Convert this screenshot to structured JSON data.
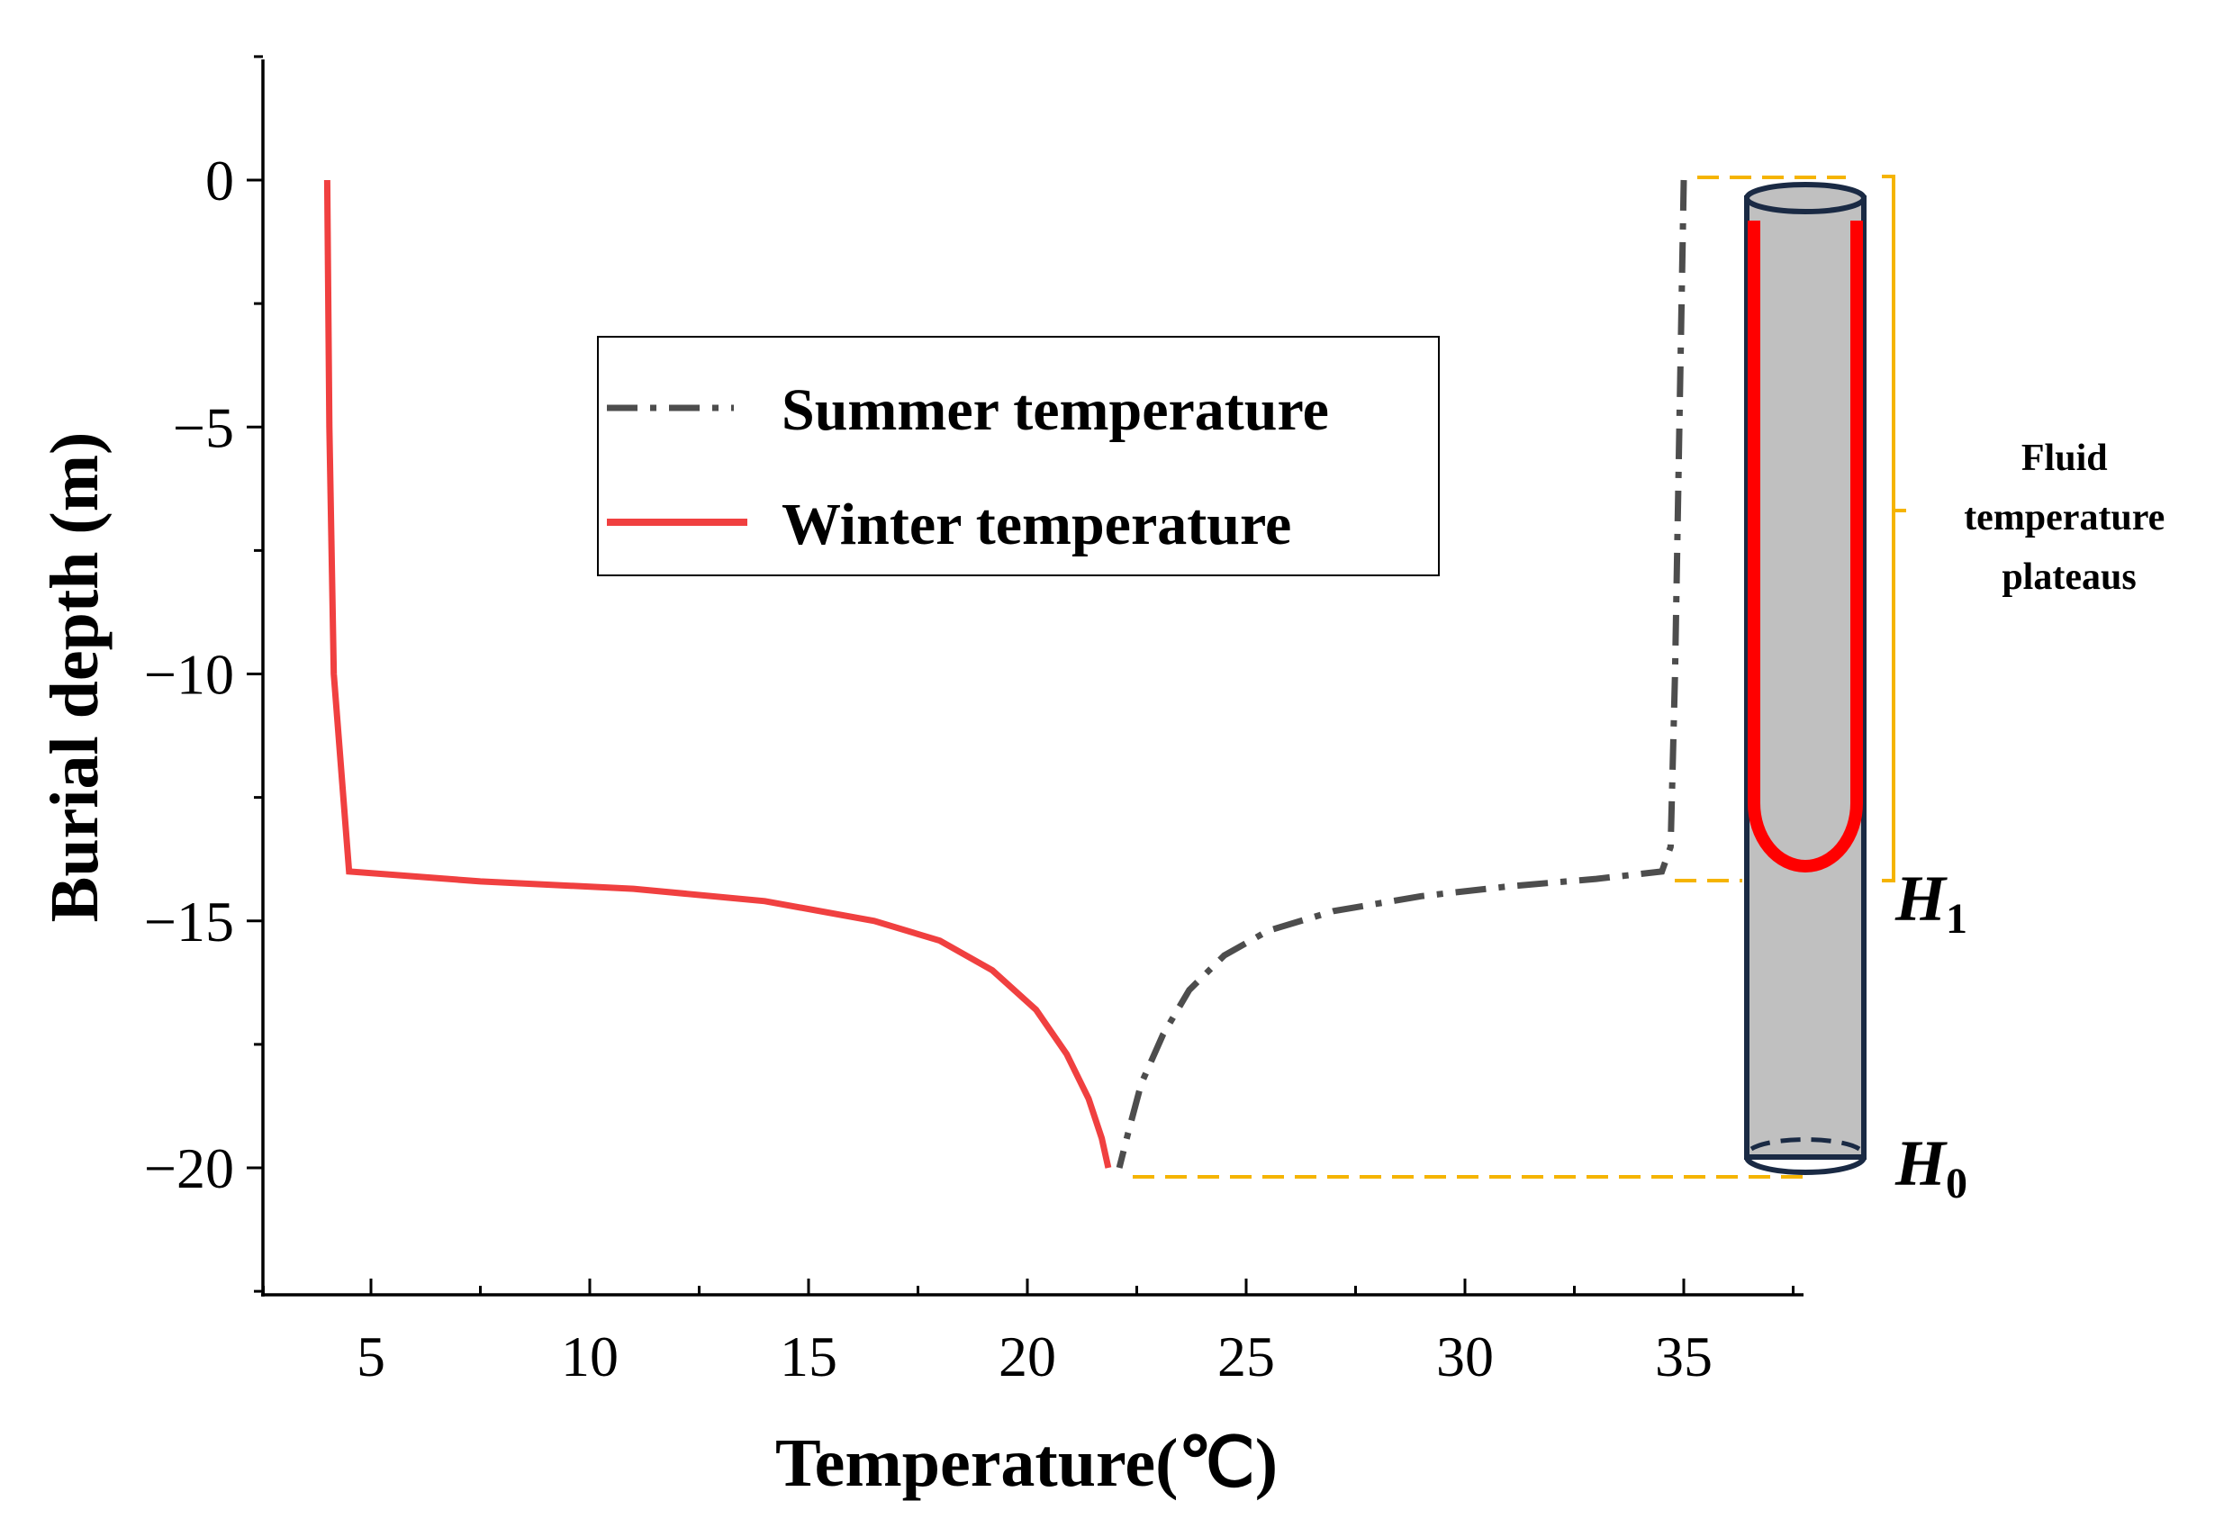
{
  "chart_data": {
    "type": "line",
    "xlabel": "Temperature(℃)",
    "ylabel": "Burial depth (m)",
    "xlim": [
      2.5,
      37.6
    ],
    "ylim": [
      -22.5,
      2.5
    ],
    "x_ticks": [
      5,
      10,
      15,
      20,
      25,
      30,
      35
    ],
    "y_ticks": [
      0,
      -5,
      -10,
      -15,
      -20
    ],
    "x_tick_labels": [
      "5",
      "10",
      "15",
      "20",
      "25",
      "30",
      "35"
    ],
    "y_tick_labels": [
      "0",
      "−5",
      "−10",
      "−15",
      "−20"
    ],
    "legend_position": "center-top",
    "series": [
      {
        "name": "Summer temperature",
        "style": "dash-dot",
        "color": "#4d4d4d",
        "points": [
          [
            35.0,
            0
          ],
          [
            34.9,
            -5
          ],
          [
            34.8,
            -10
          ],
          [
            34.7,
            -13.5
          ],
          [
            34.5,
            -14.0
          ],
          [
            33.0,
            -14.15
          ],
          [
            31.0,
            -14.3
          ],
          [
            29.0,
            -14.5
          ],
          [
            27.0,
            -14.8
          ],
          [
            25.5,
            -15.2
          ],
          [
            24.5,
            -15.7
          ],
          [
            23.7,
            -16.4
          ],
          [
            23.1,
            -17.3
          ],
          [
            22.6,
            -18.3
          ],
          [
            22.3,
            -19.3
          ],
          [
            22.1,
            -20.0
          ]
        ]
      },
      {
        "name": "Winter temperature",
        "style": "solid",
        "color": "#f04040",
        "points": [
          [
            4.0,
            0
          ],
          [
            4.05,
            -5
          ],
          [
            4.15,
            -10
          ],
          [
            4.5,
            -14.0
          ],
          [
            7.5,
            -14.2
          ],
          [
            11.0,
            -14.35
          ],
          [
            14.0,
            -14.6
          ],
          [
            16.5,
            -15.0
          ],
          [
            18.0,
            -15.4
          ],
          [
            19.2,
            -16.0
          ],
          [
            20.2,
            -16.8
          ],
          [
            20.9,
            -17.7
          ],
          [
            21.4,
            -18.6
          ],
          [
            21.7,
            -19.4
          ],
          [
            21.85,
            -20.0
          ]
        ]
      }
    ],
    "annotations": {
      "bracket_label": "Fluid temperature plateaus",
      "h1_main": "H",
      "h1_sub": "1",
      "h0_main": "H",
      "h0_sub": "0"
    }
  },
  "colors": {
    "guide": "#f5b400",
    "pipe_fill": "#c0c0c0",
    "pipe_edge": "#1a2a44",
    "u_tube": "#ff0000"
  }
}
